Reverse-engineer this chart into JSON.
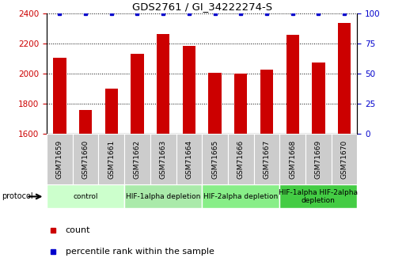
{
  "title": "GDS2761 / GI_34222274-S",
  "samples": [
    "GSM71659",
    "GSM71660",
    "GSM71661",
    "GSM71662",
    "GSM71663",
    "GSM71664",
    "GSM71665",
    "GSM71666",
    "GSM71667",
    "GSM71668",
    "GSM71669",
    "GSM71670"
  ],
  "counts": [
    2105,
    1760,
    1900,
    2130,
    2265,
    2185,
    2005,
    2000,
    2025,
    2260,
    2075,
    2340
  ],
  "percentiles": [
    100,
    100,
    100,
    100,
    100,
    100,
    100,
    100,
    100,
    100,
    100,
    100
  ],
  "bar_color": "#cc0000",
  "dot_color": "#0000cc",
  "ylim_left": [
    1600,
    2400
  ],
  "ylim_right": [
    0,
    100
  ],
  "yticks_left": [
    1600,
    1800,
    2000,
    2200,
    2400
  ],
  "yticks_right": [
    0,
    25,
    50,
    75,
    100
  ],
  "protocol_groups": [
    {
      "label": "control",
      "start": 0,
      "end": 2,
      "color": "#ccffcc"
    },
    {
      "label": "HIF-1alpha depletion",
      "start": 3,
      "end": 5,
      "color": "#aaeaaa"
    },
    {
      "label": "HIF-2alpha depletion",
      "start": 6,
      "end": 8,
      "color": "#88ee88"
    },
    {
      "label": "HIF-1alpha HIF-2alpha\ndepletion",
      "start": 9,
      "end": 11,
      "color": "#44cc44"
    }
  ],
  "tick_color_left": "#cc0000",
  "tick_color_right": "#0000cc",
  "grid_color": "#000000",
  "bar_width": 0.5,
  "legend_items": [
    {
      "label": "count",
      "color": "#cc0000"
    },
    {
      "label": "percentile rank within the sample",
      "color": "#0000cc"
    }
  ],
  "sample_box_color": "#cccccc",
  "protocol_label": "protocol"
}
